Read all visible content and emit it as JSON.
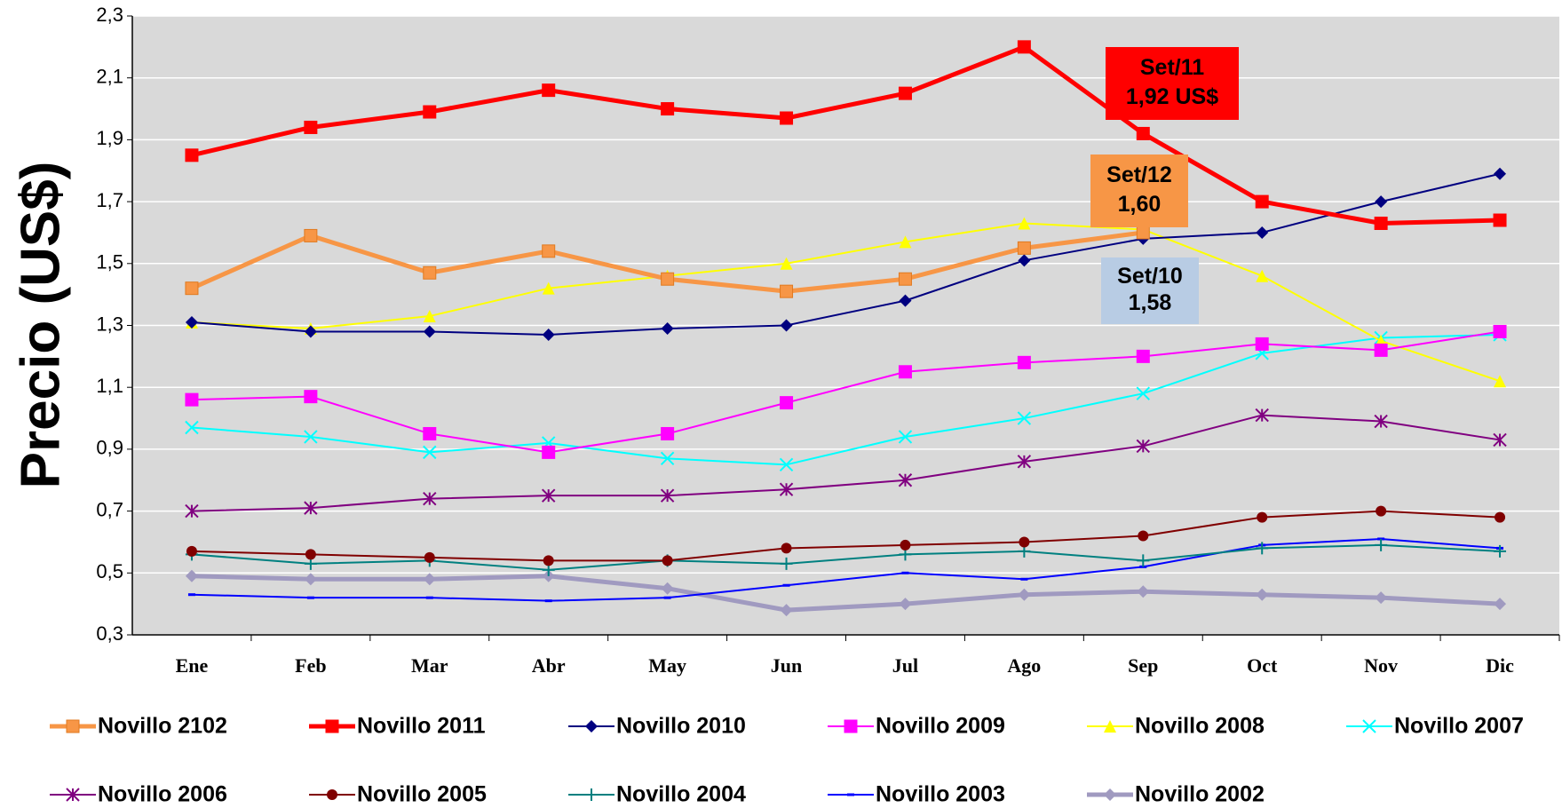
{
  "chart_data": {
    "type": "line",
    "y_label": "Precio (US$)",
    "categories": [
      "Ene",
      "Feb",
      "Mar",
      "Abr",
      "May",
      "Jun",
      "Jul",
      "Ago",
      "Sep",
      "Oct",
      "Nov",
      "Dic"
    ],
    "ylim": [
      0.3,
      2.3
    ],
    "yticks": [
      {
        "value": 0.3,
        "label": "0,3"
      },
      {
        "value": 0.5,
        "label": "0,5"
      },
      {
        "value": 0.7,
        "label": "0,7"
      },
      {
        "value": 0.9,
        "label": "0,9"
      },
      {
        "value": 1.1,
        "label": "1,1"
      },
      {
        "value": 1.3,
        "label": "1,3"
      },
      {
        "value": 1.5,
        "label": "1,5"
      },
      {
        "value": 1.7,
        "label": "1,7"
      },
      {
        "value": 1.9,
        "label": "1,9"
      },
      {
        "value": 2.1,
        "label": "2,1"
      },
      {
        "value": 2.3,
        "label": "2,3"
      }
    ],
    "grid": true,
    "series": [
      {
        "name": "Novillo 2102",
        "color": "#f79646",
        "marker": "square",
        "values": [
          1.42,
          1.59,
          1.47,
          1.54,
          1.45,
          1.41,
          1.45,
          1.55,
          1.6,
          null,
          null,
          null
        ]
      },
      {
        "name": "Novillo 2011",
        "color": "#ff0000",
        "marker": "square",
        "values": [
          1.85,
          1.94,
          1.99,
          2.06,
          2.0,
          1.97,
          2.05,
          2.2,
          1.92,
          1.7,
          1.63,
          1.64
        ]
      },
      {
        "name": "Novillo 2010",
        "color": "#000080",
        "marker": "diamond",
        "values": [
          1.31,
          1.28,
          1.28,
          1.27,
          1.29,
          1.3,
          1.38,
          1.51,
          1.58,
          1.6,
          1.7,
          1.79
        ]
      },
      {
        "name": "Novillo 2009",
        "color": "#ff00ff",
        "marker": "square",
        "values": [
          1.06,
          1.07,
          0.95,
          0.89,
          0.95,
          1.05,
          1.15,
          1.18,
          1.2,
          1.24,
          1.22,
          1.28
        ]
      },
      {
        "name": "Novillo 2008",
        "color": "#ffff00",
        "marker": "triangle",
        "values": [
          1.31,
          1.29,
          1.33,
          1.42,
          1.46,
          1.5,
          1.57,
          1.63,
          1.61,
          1.46,
          1.25,
          1.12
        ]
      },
      {
        "name": "Novillo 2007",
        "color": "#00ffff",
        "marker": "x",
        "values": [
          0.97,
          0.94,
          0.89,
          0.92,
          0.87,
          0.85,
          0.94,
          1.0,
          1.08,
          1.21,
          1.26,
          1.27
        ]
      },
      {
        "name": "Novillo 2006",
        "color": "#800080",
        "marker": "star",
        "values": [
          0.7,
          0.71,
          0.74,
          0.75,
          0.75,
          0.77,
          0.8,
          0.86,
          0.91,
          1.01,
          0.99,
          0.93
        ]
      },
      {
        "name": "Novillo 2005",
        "color": "#800000",
        "marker": "circle",
        "values": [
          0.57,
          0.56,
          0.55,
          0.54,
          0.54,
          0.58,
          0.59,
          0.6,
          0.62,
          0.68,
          0.7,
          0.68
        ]
      },
      {
        "name": "Novillo 2004",
        "color": "#008080",
        "marker": "plus",
        "values": [
          0.56,
          0.53,
          0.54,
          0.51,
          0.54,
          0.53,
          0.56,
          0.57,
          0.54,
          0.58,
          0.59,
          0.57
        ]
      },
      {
        "name": "Novillo 2003",
        "color": "#0000ff",
        "marker": "dash",
        "values": [
          0.43,
          0.42,
          0.42,
          0.41,
          0.42,
          0.46,
          0.5,
          0.48,
          0.52,
          0.59,
          0.61,
          0.58
        ]
      },
      {
        "name": "Novillo 2002",
        "color": "#a09ac0",
        "marker": "diamond",
        "values": [
          0.49,
          0.48,
          0.48,
          0.49,
          0.45,
          0.38,
          0.4,
          0.43,
          0.44,
          0.43,
          0.42,
          0.4
        ]
      }
    ],
    "annotations": [
      {
        "lines": [
          "Set/11",
          "1,92 US$"
        ],
        "color": "#ff0000"
      },
      {
        "lines": [
          "Set/12",
          "1,60"
        ],
        "color": "#f79646"
      },
      {
        "lines": [
          "Set/10",
          "1,58"
        ],
        "color": "#b8cce4"
      }
    ]
  }
}
